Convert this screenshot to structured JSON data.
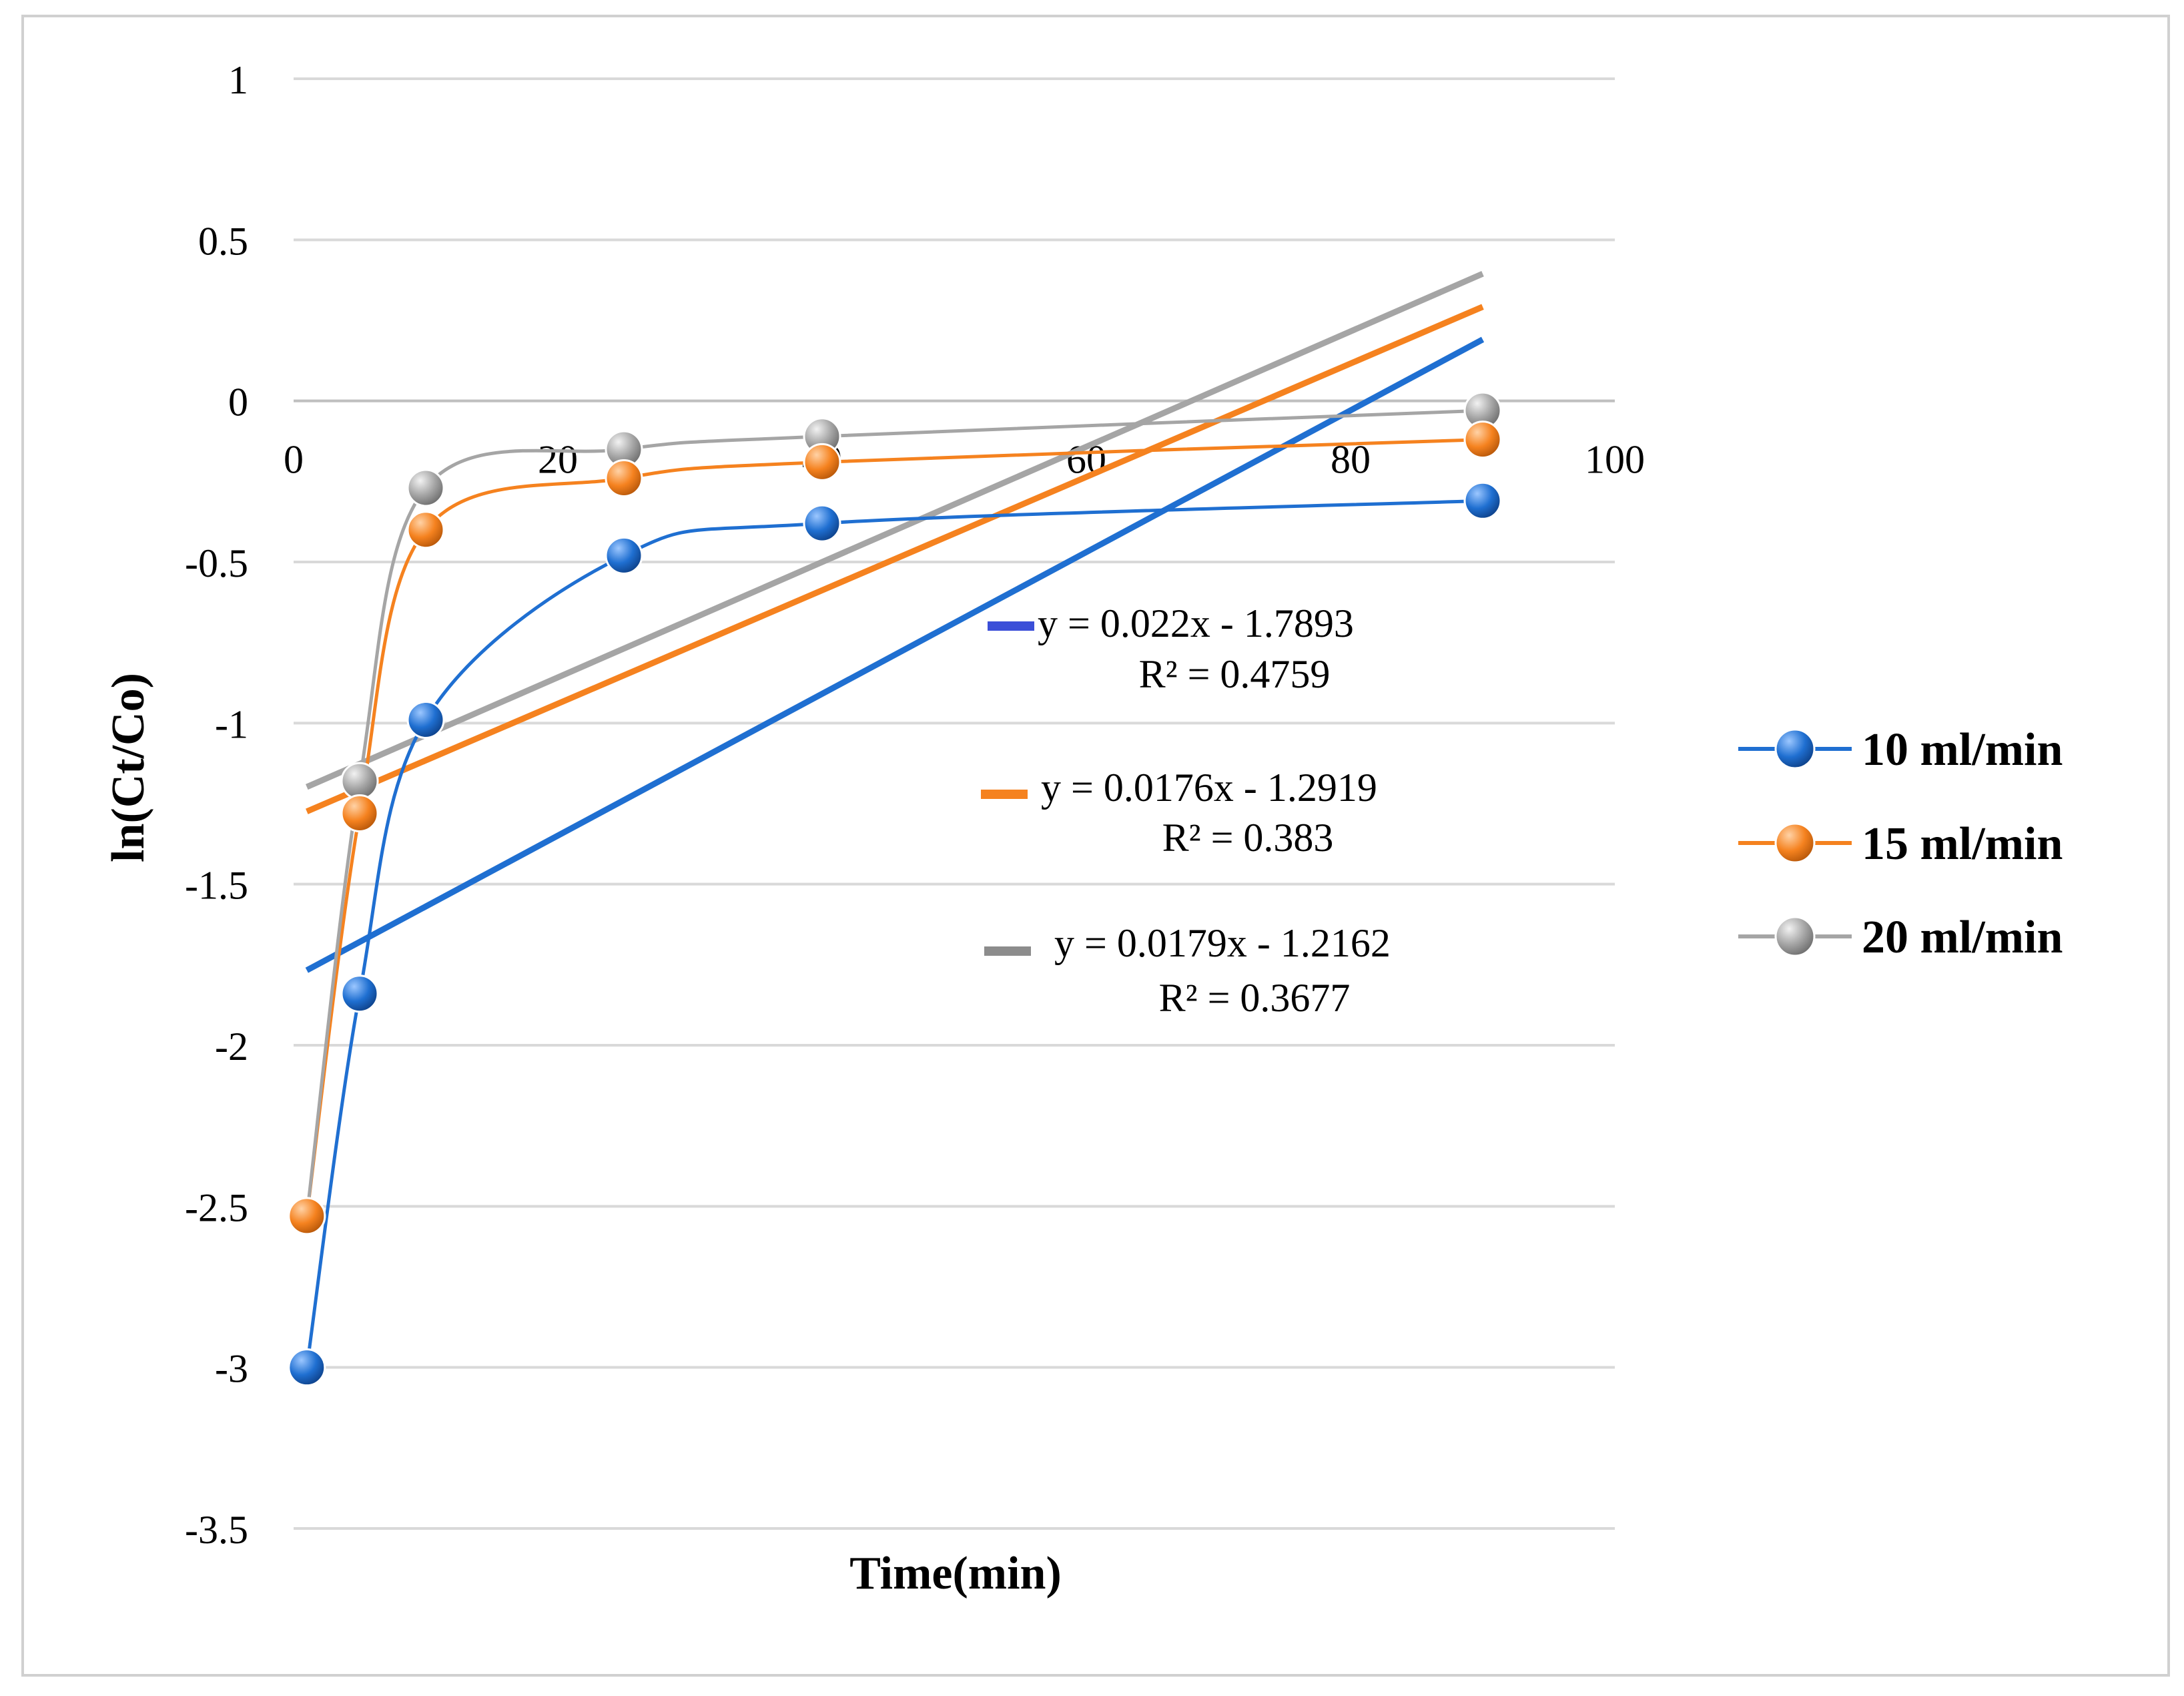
{
  "chart_data": {
    "type": "scatter",
    "title": "",
    "xlabel": "Time(min)",
    "ylabel": "ln(Ct/Co)",
    "xlim": [
      0,
      100
    ],
    "ylim": [
      -3.5,
      1
    ],
    "x_ticks": [
      0,
      20,
      40,
      60,
      80,
      100
    ],
    "y_ticks": [
      1,
      0.5,
      0,
      -0.5,
      -1,
      -1.5,
      -2,
      -2.5,
      -3,
      -3.5
    ],
    "grid": true,
    "legend_position": "right",
    "series": [
      {
        "name": "10 ml/min",
        "color": "#1f6fd1",
        "x": [
          1,
          5,
          10,
          25,
          40,
          90
        ],
        "y": [
          -3.0,
          -1.84,
          -0.99,
          -0.48,
          -0.38,
          -0.31
        ],
        "trendline": {
          "slope": 0.022,
          "intercept": -1.7893,
          "equation": "y = 0.022x - 1.7893",
          "r2": "R² = 0.4759",
          "marker_color": "#3b4fd8"
        }
      },
      {
        "name": "15 ml/min",
        "color": "#f5821f",
        "x": [
          1,
          5,
          10,
          25,
          40,
          90
        ],
        "y": [
          -2.53,
          -1.28,
          -0.4,
          -0.24,
          -0.19,
          -0.12
        ],
        "trendline": {
          "slope": 0.0176,
          "intercept": -1.2919,
          "equation": "y = 0.0176x - 1.2919",
          "r2": "R² = 0.383",
          "marker_color": "#f5821f"
        }
      },
      {
        "name": "20 ml/min",
        "color": "#a5a5a5",
        "x": [
          1,
          5,
          10,
          25,
          40,
          90
        ],
        "y": [
          -2.53,
          -1.18,
          -0.27,
          -0.15,
          -0.11,
          -0.03
        ],
        "trendline": {
          "slope": 0.0179,
          "intercept": -1.2162,
          "equation": "y = 0.0179x - 1.2162",
          "r2": "R² = 0.3677",
          "marker_color": "#8c8c8c"
        }
      }
    ]
  }
}
